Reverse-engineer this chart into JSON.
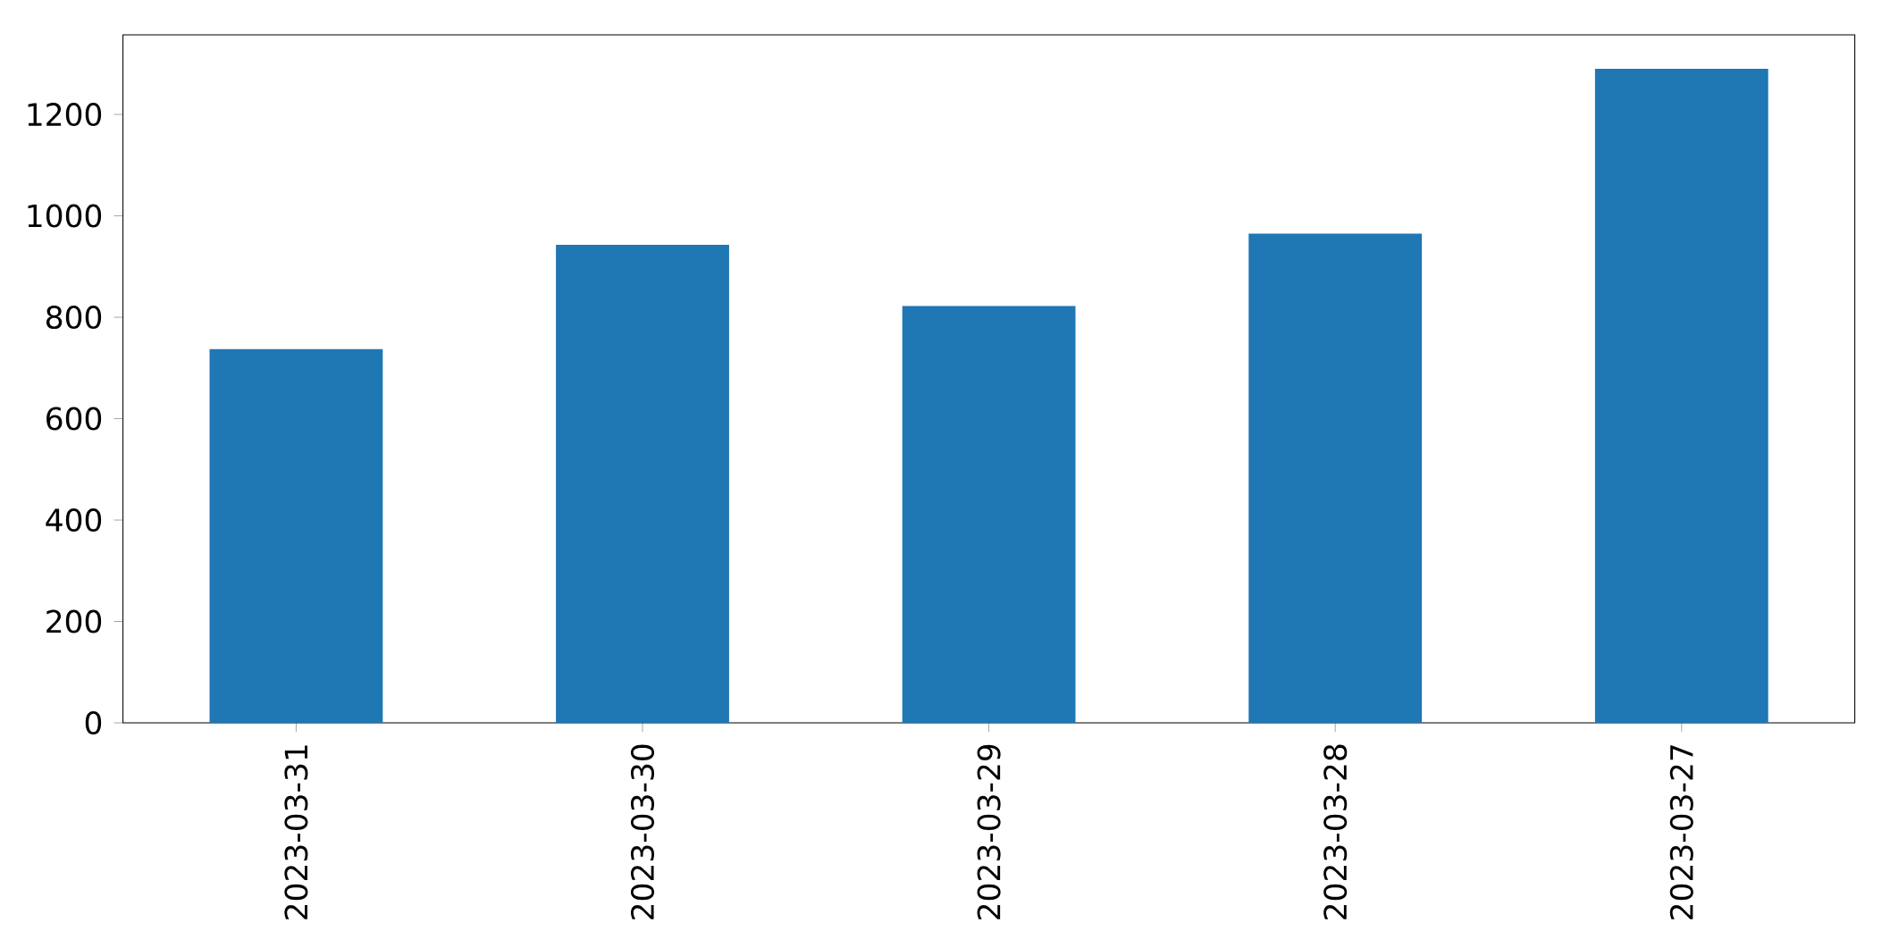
{
  "chart_data": {
    "type": "bar",
    "categories": [
      "2023-03-31",
      "2023-03-30",
      "2023-03-29",
      "2023-03-28",
      "2023-03-27"
    ],
    "values": [
      737,
      943,
      822,
      965,
      1290
    ],
    "color": "#1f77b4",
    "ylim": [
      0,
      1357
    ],
    "yticks": [
      0,
      200,
      400,
      600,
      800,
      1000,
      1200
    ],
    "grid": false
  }
}
